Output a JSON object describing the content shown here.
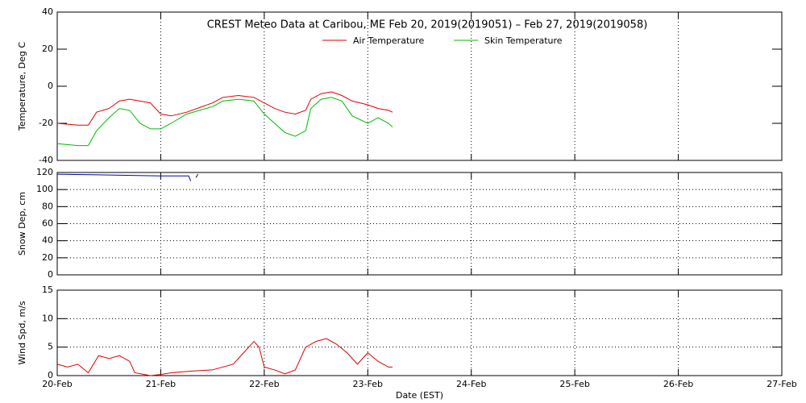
{
  "chart_data": [
    {
      "type": "line",
      "title": "CREST Meteo Data at Caribou, ME   Feb 20, 2019(2019051) – Feb 27, 2019(2019058)",
      "y_label": "Temperature, Deg C",
      "x": [
        0,
        0.2,
        0.3,
        0.38,
        0.5,
        0.6,
        0.7,
        0.8,
        0.9,
        1.0,
        1.1,
        1.25,
        1.5,
        1.6,
        1.75,
        1.9,
        2.0,
        2.1,
        2.2,
        2.3,
        2.4,
        2.45,
        2.55,
        2.65,
        2.75,
        2.85,
        3.0,
        3.1,
        3.2,
        3.24
      ],
      "series": [
        {
          "name": "Air Temperature",
          "color": "#dd0000",
          "values": [
            -20,
            -21,
            -21,
            -14,
            -12,
            -8,
            -7,
            -8,
            -9,
            -15,
            -16,
            -14,
            -9,
            -6,
            -5,
            -6,
            -9,
            -12,
            -14,
            -15,
            -13,
            -7,
            -4,
            -3,
            -5,
            -8,
            -10,
            -12,
            -13,
            -14
          ]
        },
        {
          "name": "Skin Temperature",
          "color": "#00bb00",
          "values": [
            -31,
            -32,
            -32,
            -24,
            -17,
            -12,
            -13,
            -20,
            -23,
            -23,
            -20,
            -15,
            -11,
            -8,
            -7,
            -8,
            -15,
            -20,
            -25,
            -27,
            -24,
            -12,
            -7,
            -6,
            -8,
            -16,
            -20,
            -17,
            -20,
            -22
          ]
        }
      ],
      "xlim": [
        0,
        7
      ],
      "xticks": [
        0,
        1,
        2,
        3,
        4,
        5,
        6,
        7
      ],
      "ylim": [
        -40,
        40
      ],
      "yticks": [
        -40,
        -20,
        0,
        20,
        40
      ],
      "xgrid": true,
      "ygrid": false
    },
    {
      "type": "line",
      "y_label": "Snow Dep, cm",
      "x": [
        0,
        0.5,
        1.0,
        1.27,
        1.29,
        1.31,
        1.34,
        1.36
      ],
      "series": [
        {
          "color": "#0000aa",
          "values": [
            118,
            117,
            116,
            116,
            110,
            null,
            114,
            118
          ]
        }
      ],
      "xlim": [
        0,
        7
      ],
      "xticks": [
        0,
        1,
        2,
        3,
        4,
        5,
        6,
        7
      ],
      "ylim": [
        0,
        120
      ],
      "yticks": [
        0,
        20,
        40,
        60,
        80,
        100,
        120
      ],
      "xgrid": true,
      "ygrid": true
    },
    {
      "type": "line",
      "y_label": "Wind Spd, m/s",
      "x_label": "Date (EST)",
      "x": [
        0,
        0.1,
        0.2,
        0.3,
        0.4,
        0.5,
        0.6,
        0.7,
        0.75,
        0.9,
        1.0,
        1.1,
        1.3,
        1.5,
        1.7,
        1.8,
        1.9,
        1.95,
        2.0,
        2.1,
        2.2,
        2.3,
        2.4,
        2.5,
        2.6,
        2.7,
        2.8,
        2.9,
        3.0,
        3.1,
        3.2,
        3.24
      ],
      "series": [
        {
          "color": "#dd0000",
          "values": [
            2,
            1.5,
            2,
            0.5,
            3.5,
            3,
            3.5,
            2.5,
            0.5,
            0,
            0.2,
            0.5,
            0.8,
            1,
            2,
            4,
            6,
            5,
            1.5,
            1,
            0.3,
            1,
            5,
            6,
            6.5,
            5.5,
            4,
            2,
            4,
            2.5,
            1.5,
            1.5
          ]
        }
      ],
      "xlim": [
        0,
        7
      ],
      "xticks": [
        {
          "value": 0,
          "label": "20-Feb"
        },
        {
          "value": 1,
          "label": "21-Feb"
        },
        {
          "value": 2,
          "label": "22-Feb"
        },
        {
          "value": 3,
          "label": "23-Feb"
        },
        {
          "value": 4,
          "label": "24-Feb"
        },
        {
          "value": 5,
          "label": "25-Feb"
        },
        {
          "value": 6,
          "label": "26-Feb"
        },
        {
          "value": 7,
          "label": "27-Feb"
        }
      ],
      "ylim": [
        0,
        15
      ],
      "yticks": [
        0,
        5,
        10,
        15
      ],
      "xgrid": true,
      "ygrid": true
    }
  ]
}
